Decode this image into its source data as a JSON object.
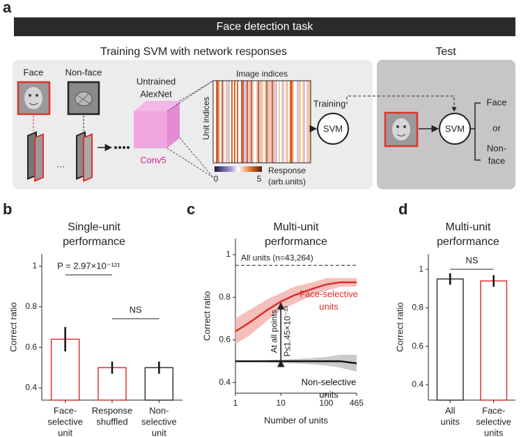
{
  "panel_labels": [
    "a",
    "b",
    "c",
    "d"
  ],
  "diagram": {
    "header": "Face detection task",
    "training_title": "Training SVM with network responses",
    "test_title": "Test",
    "face": "Face",
    "non_face": "Non-face",
    "ellipsis": "···",
    "network": [
      "Untrained",
      "AlexNet"
    ],
    "layer": "Conv5",
    "heatmap_x": "Image indices",
    "heatmap_y": "Unit indices",
    "colorbar_label": [
      "Response",
      "(arb.units)"
    ],
    "colorbar_ticks": [
      "0",
      "5"
    ],
    "training": "Training",
    "svm": "SVM",
    "outputs": [
      "Face",
      "or",
      "Non-",
      "face"
    ]
  },
  "chart_data": [
    {
      "type": "bar",
      "title_lines": [
        "Single-unit",
        "performance"
      ],
      "y_label": "Correct ratio",
      "categories": [
        [
          "Face-",
          "selective",
          "unit"
        ],
        [
          "Response",
          "shuffled"
        ],
        [
          "Non-",
          "selective",
          "unit"
        ]
      ],
      "values": [
        0.64,
        0.5,
        0.5
      ],
      "errors": [
        0.06,
        0.03,
        0.03
      ],
      "edge_colors": [
        "#e0302a",
        "#e0302a",
        "#333333"
      ],
      "ylim": [
        0.34,
        1.06
      ],
      "yticks": [
        0.4,
        0.6,
        0.8,
        1
      ],
      "annotations": [
        "P = 2.97×10⁻¹²¹",
        "NS"
      ]
    },
    {
      "type": "line",
      "title_lines": [
        "Multi-unit",
        "performance"
      ],
      "x_label": "Number of units",
      "y_label": "Correct ratio",
      "log_x": true,
      "x": [
        1,
        2,
        5,
        10,
        20,
        50,
        100,
        200,
        465
      ],
      "series": [
        {
          "name": [
            "Face-selective",
            "units"
          ],
          "color": "#d8302a",
          "band_color": "#f3b0ab",
          "values": [
            0.64,
            0.68,
            0.74,
            0.78,
            0.81,
            0.84,
            0.86,
            0.87,
            0.87
          ],
          "errors": [
            0.06,
            0.06,
            0.05,
            0.04,
            0.04,
            0.03,
            0.03,
            0.02,
            0.02
          ]
        },
        {
          "name": [
            "Non-selective",
            "units"
          ],
          "color": "#111111",
          "band_color": "#bdbdbd",
          "values": [
            0.5,
            0.5,
            0.5,
            0.5,
            0.5,
            0.5,
            0.5,
            0.5,
            0.49
          ],
          "errors": [
            0.003,
            0.003,
            0.005,
            0.008,
            0.01,
            0.015,
            0.02,
            0.03,
            0.04
          ]
        }
      ],
      "xlim": [
        1,
        465
      ],
      "xticks": [
        1,
        10,
        100,
        465
      ],
      "ylim": [
        0.35,
        1.075
      ],
      "yticks": [
        0.4,
        0.6,
        0.8,
        1
      ],
      "reference": {
        "value": 0.95,
        "label": "All units (n=43,264)"
      },
      "arrow_labels": [
        "At all points",
        "P≤1.45×10⁻³³"
      ]
    },
    {
      "type": "bar",
      "title_lines": [
        "Multi-unit",
        "performance"
      ],
      "y_label": "Correct ratio",
      "categories": [
        [
          "All",
          "units"
        ],
        [
          "Face-",
          "selective",
          "units"
        ]
      ],
      "values": [
        0.95,
        0.94
      ],
      "errors": [
        0.03,
        0.03
      ],
      "edge_colors": [
        "#333333",
        "#e0302a"
      ],
      "ylim": [
        0.32,
        1.08
      ],
      "yticks": [
        0.4,
        0.6,
        0.8,
        1
      ],
      "annotations": [
        "NS"
      ]
    }
  ]
}
